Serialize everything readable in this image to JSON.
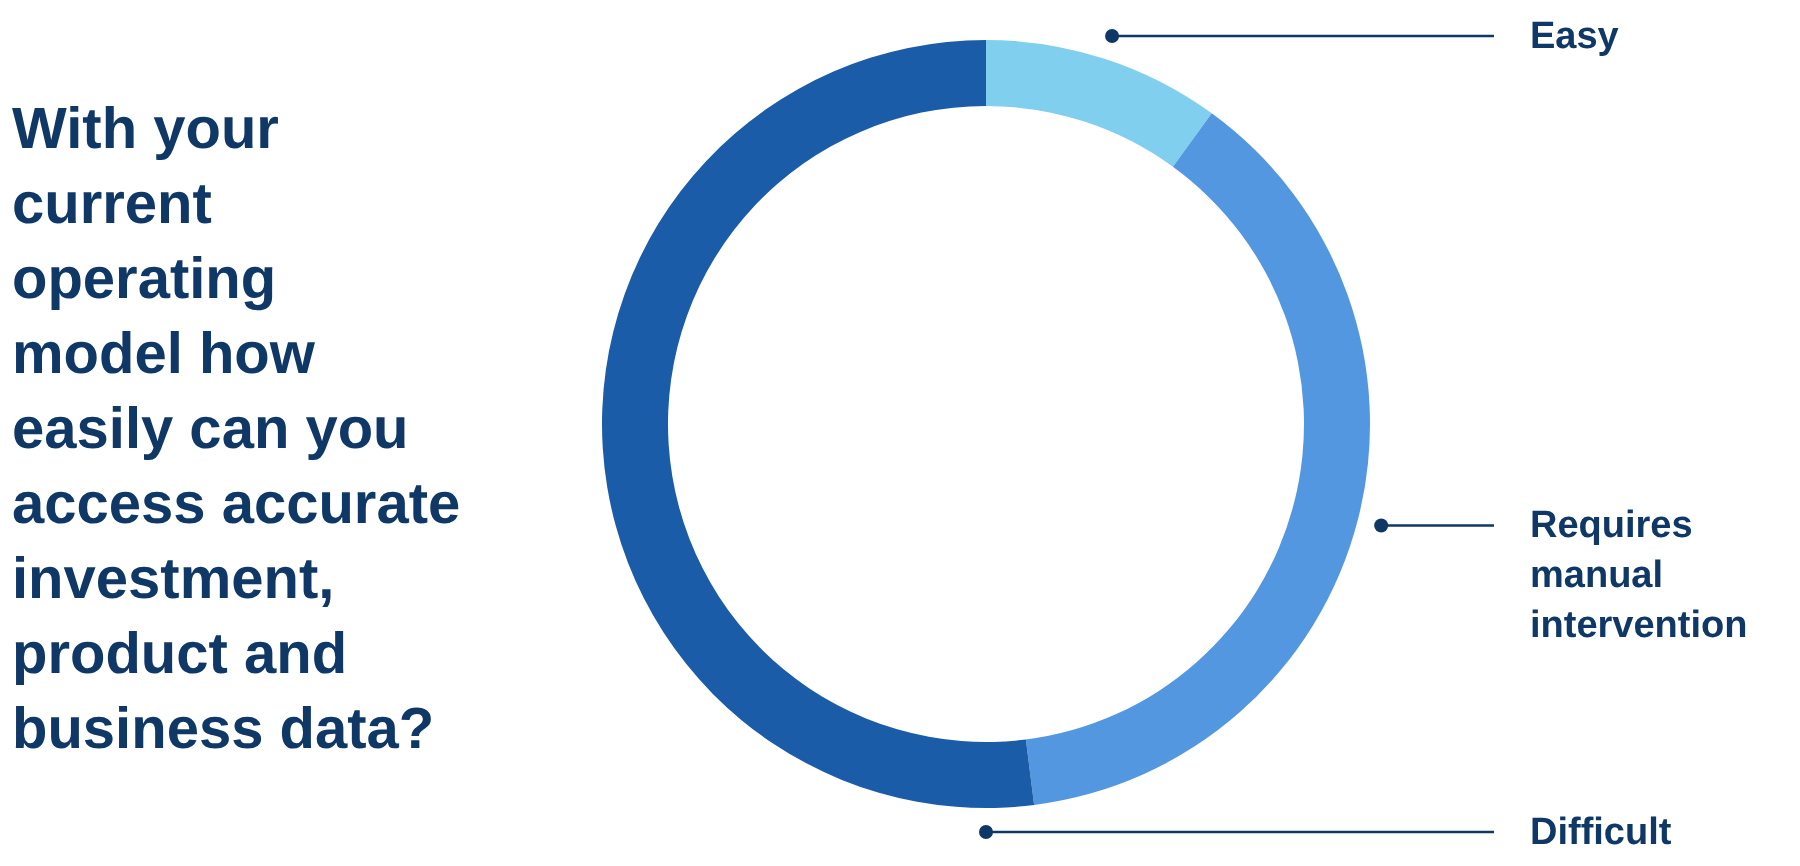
{
  "chart_data": {
    "type": "donut",
    "title": "With your current operating model how easily can you access accurate investment, product and business data?",
    "categories": [
      "Easy",
      "Requires manual intervention",
      "Difficult"
    ],
    "values": [
      10,
      38,
      52
    ],
    "colors": [
      "#80cfef",
      "#5297e0",
      "#1b5ca8"
    ]
  }
}
